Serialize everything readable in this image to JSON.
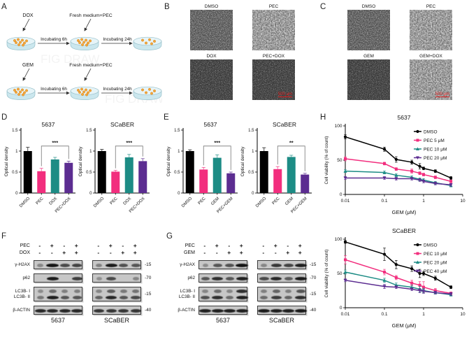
{
  "panels": {
    "a": {
      "label": "A",
      "watermark": "FIG DRAW",
      "rows": [
        {
          "drug": "DOX",
          "medium": "Fresh medium+PEC",
          "step1": "Incubating 6h",
          "step2": "Incubating 24h"
        },
        {
          "drug": "GEM",
          "medium": "Fresh medium+PEC",
          "step1": "Incubating 6h",
          "step2": "Incubating 24h"
        }
      ]
    },
    "b": {
      "label": "B",
      "images": [
        "DMSO",
        "PEC",
        "DOX",
        "PEC+DOX"
      ],
      "scale_bar": "500 μm"
    },
    "c": {
      "label": "C",
      "images": [
        "DMSO",
        "PEC",
        "GEM",
        "GEM+DOX"
      ],
      "scale_bar": "500 μm"
    },
    "d": {
      "label": "D"
    },
    "e": {
      "label": "E"
    },
    "h": {
      "label": "H"
    },
    "f": {
      "label": "F",
      "treatments": [
        {
          "name": "PEC",
          "signs": [
            "-",
            "+",
            "-",
            "+"
          ]
        },
        {
          "name": "DOX",
          "signs": [
            "-",
            "-",
            "+",
            "+"
          ]
        }
      ],
      "cell_lines": [
        "5637",
        "SCaBER"
      ],
      "rows": [
        {
          "labels": [
            "γ-H2AX"
          ],
          "mw": "-15",
          "blocks": [
            [
              [
                0.15,
                1.0,
                0.6,
                0.65
              ]
            ],
            [
              [
                0.2,
                0.95,
                0.55,
                0.5
              ]
            ]
          ]
        },
        {
          "labels": [
            "p62"
          ],
          "mw": "-70",
          "blocks": [
            [
              [
                0.05,
                0.95,
                0.05,
                0.7
              ]
            ],
            [
              [
                0.08,
                0.6,
                0.05,
                0.15
              ]
            ]
          ]
        },
        {
          "labels": [
            "LC3B- I",
            "LC3B- II"
          ],
          "mw": "-15",
          "blocks": [
            [
              [
                0.1,
                0.35,
                0.2,
                0.2
              ],
              [
                0.25,
                0.9,
                0.5,
                0.5
              ]
            ],
            [
              [
                0.15,
                0.45,
                0.25,
                0.3
              ],
              [
                0.4,
                0.85,
                0.5,
                0.6
              ]
            ]
          ]
        },
        {
          "labels": [
            "β-ACTIN"
          ],
          "mw": "-40",
          "blocks": [
            [
              [
                0.85,
                0.85,
                0.85,
                0.85
              ]
            ],
            [
              [
                0.75,
                0.75,
                0.75,
                0.75
              ]
            ]
          ]
        }
      ]
    },
    "g": {
      "label": "G",
      "treatments": [
        {
          "name": "PEC",
          "signs": [
            "-",
            "+",
            "-",
            "+"
          ]
        },
        {
          "name": "GEM",
          "signs": [
            "-",
            "-",
            "+",
            "+"
          ]
        }
      ],
      "cell_lines": [
        "5637",
        "SCaBER"
      ],
      "rows": [
        {
          "labels": [
            "γ-H2AX"
          ],
          "mw": "-15",
          "blocks": [
            [
              [
                0.1,
                0.5,
                0.55,
                1.0
              ]
            ],
            [
              [
                0.15,
                0.75,
                0.65,
                0.9
              ]
            ]
          ]
        },
        {
          "labels": [
            "p62"
          ],
          "mw": "-70",
          "blocks": [
            [
              [
                0.5,
                0.8,
                0.5,
                0.9
              ]
            ],
            [
              [
                0.6,
                0.85,
                0.45,
                0.95
              ]
            ]
          ]
        },
        {
          "labels": [
            "LC3B- I",
            "LC3B- II"
          ],
          "mw": "-15",
          "blocks": [
            [
              [
                0.15,
                0.35,
                0.15,
                0.8
              ],
              [
                0.55,
                0.8,
                0.35,
                0.9
              ]
            ],
            [
              [
                0.2,
                0.4,
                0.2,
                0.5
              ],
              [
                0.35,
                0.7,
                0.4,
                0.8
              ]
            ]
          ]
        },
        {
          "labels": [
            "β-ACTIN"
          ],
          "mw": "-40",
          "blocks": [
            [
              [
                0.9,
                0.9,
                0.9,
                0.9
              ]
            ],
            [
              [
                0.95,
                0.9,
                0.9,
                0.95
              ]
            ]
          ]
        }
      ]
    }
  },
  "chart_data": [
    {
      "id": "d-5637",
      "type": "bar",
      "title": "5637",
      "ylabel": "Optical density",
      "ylim": [
        0,
        1.5
      ],
      "yticks": [
        0,
        0.5,
        1,
        1.5
      ],
      "categories": [
        "DMSO",
        "PEC",
        "DOX",
        "PEC+DOX"
      ],
      "values": [
        1.0,
        0.52,
        0.8,
        0.72
      ],
      "errors": [
        0.09,
        0.07,
        0.05,
        0.04
      ],
      "colors": [
        "#000000",
        "#F22E7E",
        "#1D8C85",
        "#5C2D91"
      ],
      "significance": {
        "from": 1,
        "to": 3,
        "label": "***",
        "y": 1.12
      }
    },
    {
      "id": "d-scaber",
      "type": "bar",
      "title": "SCaBER",
      "ylabel": "Optical density",
      "ylim": [
        0,
        1.5
      ],
      "yticks": [
        0,
        0.5,
        1,
        1.5
      ],
      "categories": [
        "DMSO",
        "PEC",
        "DOX",
        "PEC+DOX"
      ],
      "values": [
        1.0,
        0.51,
        0.85,
        0.76
      ],
      "errors": [
        0.04,
        0.03,
        0.07,
        0.06
      ],
      "colors": [
        "#000000",
        "#F22E7E",
        "#1D8C85",
        "#5C2D91"
      ],
      "significance": {
        "from": 1,
        "to": 3,
        "label": "***",
        "y": 1.12
      }
    },
    {
      "id": "e-5637",
      "type": "bar",
      "title": "5637",
      "ylabel": "Optical density",
      "ylim": [
        0,
        1.5
      ],
      "yticks": [
        0,
        0.5,
        1,
        1.5
      ],
      "categories": [
        "DMSO",
        "PEC",
        "GEM",
        "PEC+GEM"
      ],
      "values": [
        1.0,
        0.56,
        0.84,
        0.47
      ],
      "errors": [
        0.03,
        0.05,
        0.07,
        0.03
      ],
      "colors": [
        "#000000",
        "#F22E7E",
        "#1D8C85",
        "#5C2D91"
      ],
      "significance": {
        "from": 1,
        "to": 3,
        "label": "***",
        "y": 1.12
      }
    },
    {
      "id": "e-scaber",
      "type": "bar",
      "title": "SCaBER",
      "ylabel": "Optical density",
      "ylim": [
        0,
        1.5
      ],
      "yticks": [
        0,
        0.5,
        1,
        1.5
      ],
      "categories": [
        "DMSO",
        "PEC",
        "GEM",
        "PEC+GEM"
      ],
      "values": [
        1.0,
        0.57,
        0.86,
        0.44
      ],
      "errors": [
        0.08,
        0.06,
        0.04,
        0.03
      ],
      "colors": [
        "#000000",
        "#F22E7E",
        "#1D8C85",
        "#5C2D91"
      ],
      "significance": {
        "from": 1,
        "to": 3,
        "label": "**",
        "y": 1.12
      }
    },
    {
      "id": "h-5637",
      "type": "line",
      "title": "5637",
      "xlabel": "GEM (μM)",
      "ylabel": "Cell viability (% of count)",
      "xscale": "log",
      "xlim": [
        0.01,
        10
      ],
      "ylim": [
        0,
        100
      ],
      "yticks": [
        0,
        50,
        100
      ],
      "xticks": [
        0.01,
        0.1,
        1,
        10
      ],
      "x": [
        0.01,
        0.1,
        0.2,
        0.5,
        0.8,
        1,
        2,
        5
      ],
      "series": [
        {
          "name": "DMSO",
          "color": "#000000",
          "marker": "circle",
          "values": [
            84,
            66,
            51,
            47,
            41,
            38,
            34,
            24
          ],
          "errors": [
            3,
            3,
            4,
            3,
            4,
            2,
            2,
            2
          ]
        },
        {
          "name": "PEC 5 μM",
          "color": "#F22E7E",
          "marker": "square",
          "values": [
            52,
            45,
            37,
            34,
            31,
            29,
            25,
            19
          ],
          "errors": [
            3,
            2,
            2,
            3,
            2,
            2,
            2,
            2
          ]
        },
        {
          "name": "PEC 10 μM",
          "color": "#1D8C85",
          "marker": "triangle",
          "values": [
            34,
            32,
            28,
            25,
            22,
            21,
            17,
            13
          ],
          "errors": [
            2,
            2,
            2,
            2,
            2,
            2,
            2,
            2
          ]
        },
        {
          "name": "PEC 20 μM",
          "color": "#5C2D91",
          "marker": "triangle-down",
          "values": [
            24,
            24,
            23,
            23,
            21,
            19,
            16,
            14
          ],
          "errors": [
            2,
            2,
            2,
            2,
            2,
            2,
            2,
            2
          ]
        }
      ]
    },
    {
      "id": "h-scaber",
      "type": "line",
      "title": "SCaBER",
      "xlabel": "GEM (μM)",
      "ylabel": "Cell viability (% of count)",
      "xscale": "log",
      "xlim": [
        0.01,
        10
      ],
      "ylim": [
        0,
        100
      ],
      "yticks": [
        0,
        50,
        100
      ],
      "xticks": [
        0.01,
        0.1,
        1,
        10
      ],
      "x": [
        0.01,
        0.1,
        0.2,
        0.5,
        0.8,
        1,
        2,
        5
      ],
      "series": [
        {
          "name": "DMSO",
          "color": "#000000",
          "marker": "circle",
          "values": [
            96,
            78,
            63,
            57,
            50,
            50,
            43,
            30
          ],
          "errors": [
            2,
            9,
            6,
            4,
            6,
            3,
            3,
            2
          ]
        },
        {
          "name": "PEC 10 μM",
          "color": "#F22E7E",
          "marker": "square",
          "values": [
            70,
            52,
            44,
            36,
            33,
            30,
            25,
            21
          ],
          "errors": [
            6,
            4,
            3,
            4,
            5,
            8,
            3,
            2
          ]
        },
        {
          "name": "PEC 20 μM",
          "color": "#1D8C85",
          "marker": "triangle",
          "values": [
            52,
            40,
            33,
            30,
            27,
            25,
            22,
            19
          ],
          "errors": [
            3,
            3,
            3,
            3,
            4,
            3,
            2,
            2
          ]
        },
        {
          "name": "PEC 40 μM",
          "color": "#5C2D91",
          "marker": "triangle-down",
          "values": [
            40,
            31,
            30,
            27,
            25,
            24,
            22,
            20
          ],
          "errors": [
            2,
            3,
            2,
            2,
            3,
            3,
            2,
            2
          ]
        }
      ]
    }
  ]
}
